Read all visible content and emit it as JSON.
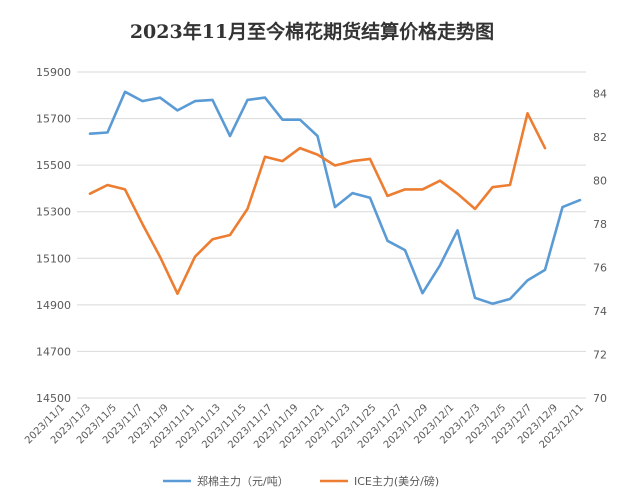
{
  "chart_data": {
    "type": "line",
    "title": "2023年11月至今棉花期货结算价格走势图",
    "x": [
      "2023/11/1",
      "2023/11/2",
      "2023/11/3",
      "2023/11/6",
      "2023/11/7",
      "2023/11/8",
      "2023/11/9",
      "2023/11/10",
      "2023/11/13",
      "2023/11/14",
      "2023/11/15",
      "2023/11/16",
      "2023/11/17",
      "2023/11/20",
      "2023/11/21",
      "2023/11/22",
      "2023/11/23",
      "2023/11/24",
      "2023/11/27",
      "2023/11/28",
      "2023/11/29",
      "2023/11/30",
      "2023/12/1",
      "2023/12/4",
      "2023/12/5",
      "2023/12/6",
      "2023/12/7",
      "2023/12/8",
      "2023/12/11"
    ],
    "xtick_labels": [
      "2023/11/1",
      "2023/11/3",
      "2023/11/5",
      "2023/11/7",
      "2023/11/9",
      "2023/11/11",
      "2023/11/13",
      "2023/11/15",
      "2023/11/17",
      "2023/11/19",
      "2023/11/21",
      "2023/11/23",
      "2023/11/25",
      "2023/11/27",
      "2023/11/29",
      "2023/12/1",
      "2023/12/3",
      "2023/12/5",
      "2023/12/7",
      "2023/12/9",
      "2023/12/11"
    ],
    "y_left": {
      "ticks": [
        14500,
        14700,
        14900,
        15100,
        15300,
        15500,
        15700,
        15900
      ],
      "ylim": [
        14500,
        15900
      ]
    },
    "y_right": {
      "ticks": [
        70,
        72,
        74,
        76,
        78,
        80,
        82,
        84
      ],
      "ylim": [
        70,
        85
      ]
    },
    "grid": true,
    "legend_position": "bottom",
    "series": [
      {
        "name": "郑棉主力（元/吨）",
        "color": "#5b9bd5",
        "axis": "left",
        "values": [
          15635,
          15640,
          15815,
          15775,
          15790,
          15735,
          15775,
          15780,
          15625,
          15780,
          15790,
          15695,
          15695,
          15625,
          15320,
          15380,
          15360,
          15175,
          15135,
          14950,
          15070,
          15220,
          14930,
          14905,
          14925,
          15005,
          15050,
          15320,
          15350
        ]
      },
      {
        "name": "ICE主力(美分/磅)",
        "color": "#ed7d31",
        "axis": "right",
        "values": [
          79.4,
          79.8,
          79.6,
          78.0,
          76.5,
          74.8,
          76.5,
          77.3,
          77.5,
          78.7,
          81.1,
          80.9,
          81.5,
          81.2,
          80.7,
          80.9,
          81.0,
          79.3,
          79.6,
          79.6,
          80.0,
          79.4,
          78.7,
          79.7,
          79.8,
          83.1,
          81.5,
          null,
          null
        ]
      }
    ]
  }
}
